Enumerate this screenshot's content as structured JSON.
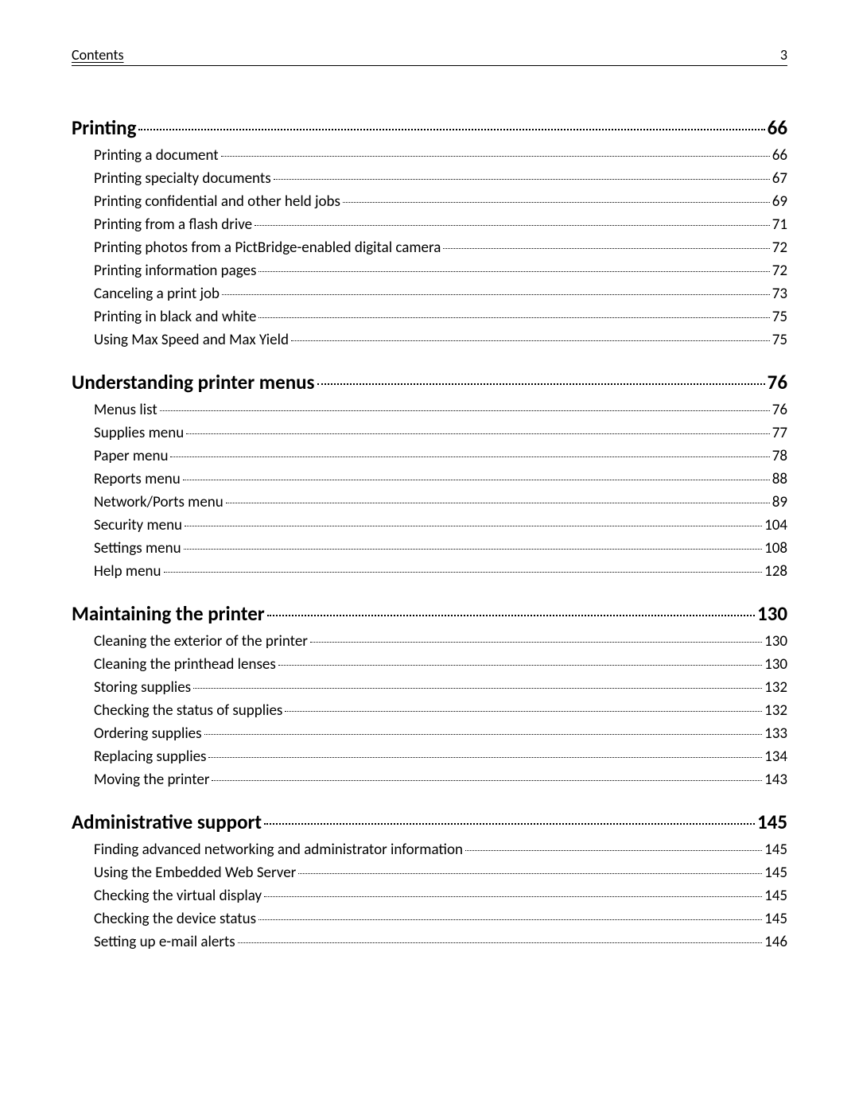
{
  "header": {
    "title": "Contents",
    "page": "3"
  },
  "sections": [
    {
      "title": "Printing",
      "page": "66",
      "items": [
        {
          "title": "Printing a document",
          "page": "66"
        },
        {
          "title": "Printing specialty documents",
          "page": "67"
        },
        {
          "title": "Printing confidential and other held jobs",
          "page": "69"
        },
        {
          "title": "Printing from a flash drive",
          "page": "71"
        },
        {
          "title": "Printing photos from a PictBridge-enabled digital camera",
          "page": "72"
        },
        {
          "title": "Printing information pages",
          "page": "72"
        },
        {
          "title": "Canceling a print job",
          "page": "73"
        },
        {
          "title": "Printing in black and white",
          "page": "75"
        },
        {
          "title": "Using Max Speed and Max Yield",
          "page": "75"
        }
      ]
    },
    {
      "title": "Understanding printer menus",
      "page": "76",
      "items": [
        {
          "title": "Menus list",
          "page": "76"
        },
        {
          "title": "Supplies menu",
          "page": "77"
        },
        {
          "title": "Paper menu",
          "page": "78"
        },
        {
          "title": "Reports menu",
          "page": "88"
        },
        {
          "title": "Network/Ports menu",
          "page": "89"
        },
        {
          "title": "Security menu",
          "page": "104"
        },
        {
          "title": "Settings menu",
          "page": "108"
        },
        {
          "title": "Help menu",
          "page": "128"
        }
      ]
    },
    {
      "title": "Maintaining the printer",
      "page": "130",
      "items": [
        {
          "title": "Cleaning the exterior of the printer",
          "page": "130"
        },
        {
          "title": "Cleaning the printhead lenses",
          "page": "130"
        },
        {
          "title": "Storing supplies",
          "page": "132"
        },
        {
          "title": "Checking the status of supplies",
          "page": "132"
        },
        {
          "title": "Ordering supplies",
          "page": "133"
        },
        {
          "title": "Replacing supplies",
          "page": "134"
        },
        {
          "title": "Moving the printer",
          "page": "143"
        }
      ]
    },
    {
      "title": "Administrative support",
      "page": "145",
      "items": [
        {
          "title": "Finding advanced networking and administrator information",
          "page": "145"
        },
        {
          "title": "Using the Embedded Web Server",
          "page": "145"
        },
        {
          "title": "Checking the virtual display",
          "page": "145"
        },
        {
          "title": "Checking the device status",
          "page": "145"
        },
        {
          "title": "Setting up e-mail alerts",
          "page": "146"
        }
      ]
    }
  ]
}
